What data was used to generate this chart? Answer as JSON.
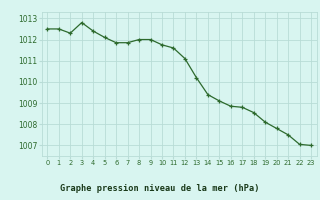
{
  "x": [
    0,
    1,
    2,
    3,
    4,
    5,
    6,
    7,
    8,
    9,
    10,
    11,
    12,
    13,
    14,
    15,
    16,
    17,
    18,
    19,
    20,
    21,
    22,
    23
  ],
  "y": [
    1012.5,
    1012.5,
    1012.3,
    1012.8,
    1012.4,
    1012.1,
    1011.85,
    1011.85,
    1012.0,
    1012.0,
    1011.75,
    1011.6,
    1011.1,
    1010.2,
    1009.4,
    1009.1,
    1008.85,
    1008.8,
    1008.55,
    1008.1,
    1007.8,
    1007.5,
    1007.05,
    1007.0
  ],
  "line_color": "#2d6a2d",
  "marker_color": "#2d6a2d",
  "bg_color": "#d8f5f0",
  "grid_color": "#b8dcd6",
  "title": "Graphe pression niveau de la mer (hPa)",
  "title_color": "#1a3a1a",
  "title_bg": "#6aaa6a",
  "xlabel_ticks": [
    "0",
    "1",
    "2",
    "3",
    "4",
    "5",
    "6",
    "7",
    "8",
    "9",
    "10",
    "11",
    "12",
    "13",
    "14",
    "15",
    "16",
    "17",
    "18",
    "19",
    "20",
    "21",
    "22",
    "23"
  ],
  "yticks": [
    1007,
    1008,
    1009,
    1010,
    1011,
    1012,
    1013
  ],
  "ylim": [
    1006.5,
    1013.3
  ],
  "xlim": [
    -0.5,
    23.5
  ]
}
